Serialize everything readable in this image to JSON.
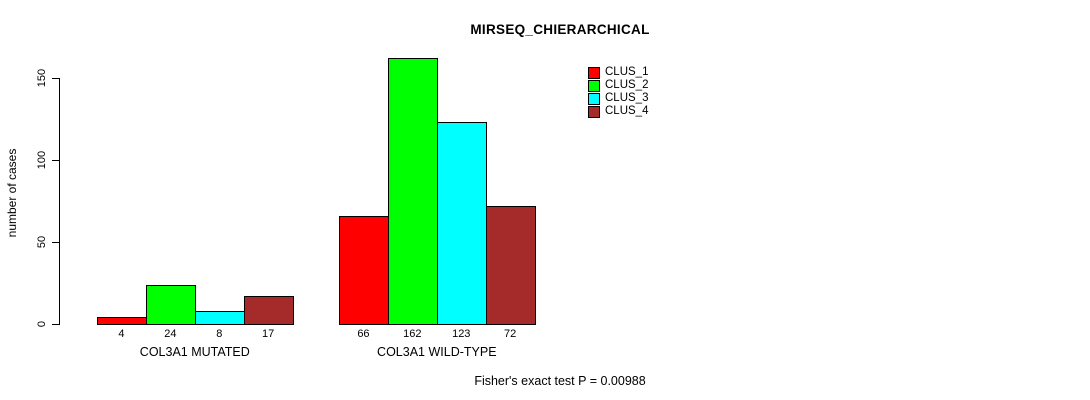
{
  "chart_data": {
    "type": "bar",
    "title": "MIRSEQ_CHIERARCHICAL",
    "xlabel": "",
    "ylabel": "number of cases",
    "ylim": [
      0,
      165
    ],
    "yticks": [
      0,
      50,
      100,
      150
    ],
    "grid": false,
    "legend_position": "top-right",
    "series": [
      {
        "name": "CLUS_1",
        "color": "#FF0000"
      },
      {
        "name": "CLUS_2",
        "color": "#00FF00"
      },
      {
        "name": "CLUS_3",
        "color": "#00FFFF"
      },
      {
        "name": "CLUS_4",
        "color": "#A52A2A"
      }
    ],
    "groups": [
      {
        "label": "COL3A1 MUTATED",
        "values": [
          4,
          24,
          8,
          17
        ]
      },
      {
        "label": "COL3A1 WILD-TYPE",
        "values": [
          66,
          162,
          123,
          72
        ]
      }
    ],
    "annotation": "Fisher's exact test P = 0.00988"
  }
}
